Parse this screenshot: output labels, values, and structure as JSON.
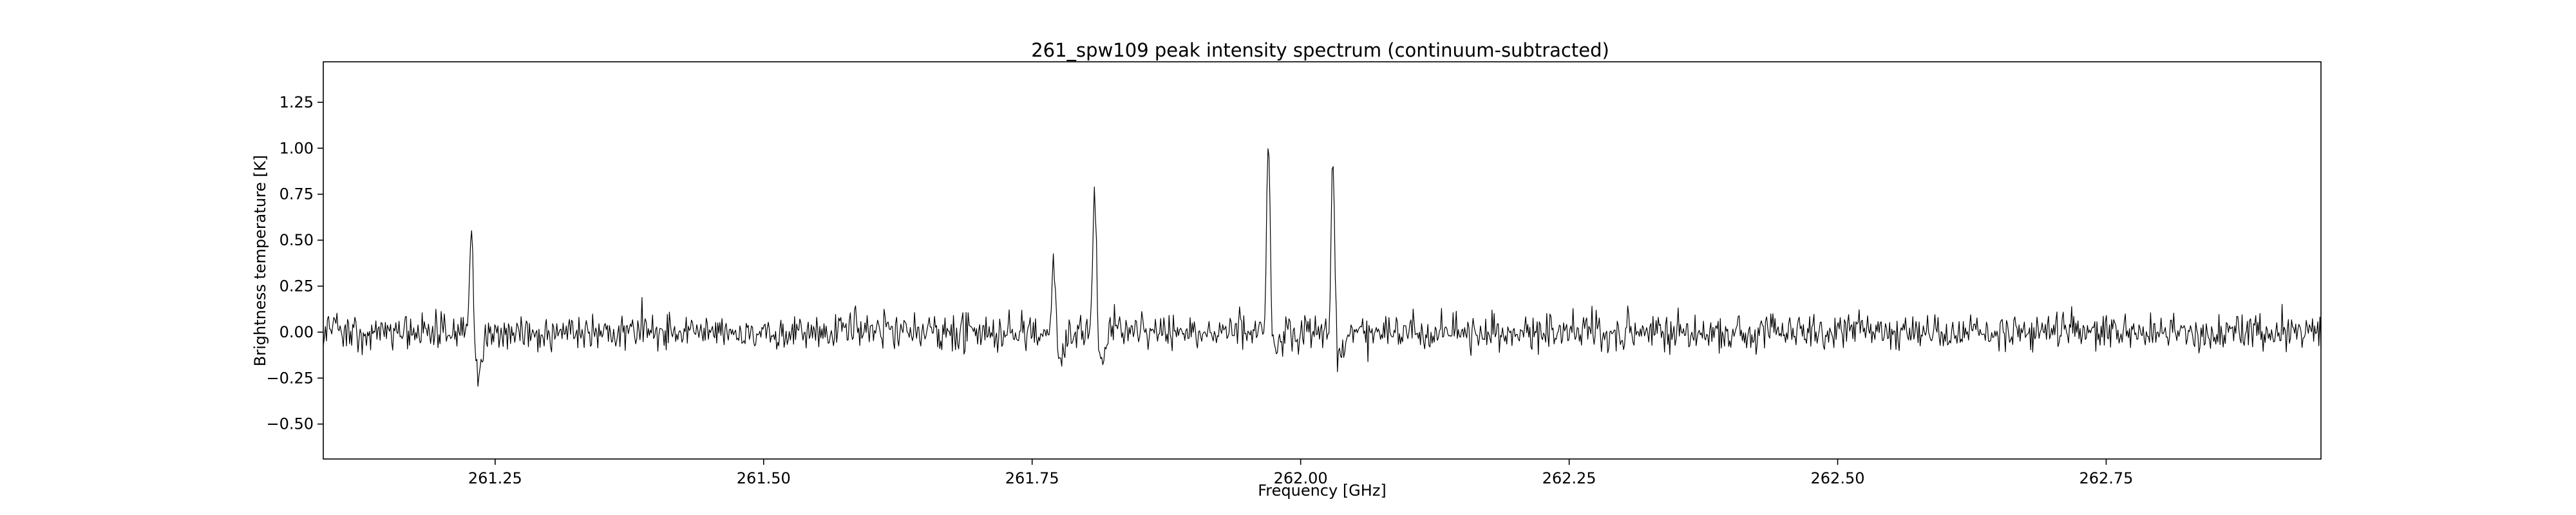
{
  "chart_data": {
    "type": "line",
    "title": "261_spw109 peak intensity spectrum (continuum-subtracted)",
    "xlabel": "Frequency [GHz]",
    "ylabel": "Brightness temperature [K]",
    "xlim": [
      261.09,
      262.95
    ],
    "ylim": [
      -0.69,
      1.47
    ],
    "x_ticks": [
      "261.25",
      "261.50",
      "261.75",
      "262.00",
      "262.25",
      "262.50",
      "262.75"
    ],
    "y_ticks": [
      "1.25",
      "1.00",
      "0.75",
      "0.50",
      "0.25",
      "0.00",
      "−0.25",
      "−0.50"
    ],
    "grid": false,
    "legend": "none",
    "line_color": "#000000",
    "noise_rms_K": 0.05,
    "n_channels": 1900,
    "lines": [
      {
        "x": 261.228,
        "peak": 0.59,
        "trough": -0.25
      },
      {
        "x": 261.77,
        "peak": 0.42,
        "trough": -0.16
      },
      {
        "x": 261.808,
        "peak": 0.85,
        "trough": -0.12
      },
      {
        "x": 261.97,
        "peak": 1.1,
        "trough": -0.17
      },
      {
        "x": 262.03,
        "peak": 1.02,
        "trough": -0.18
      }
    ]
  }
}
